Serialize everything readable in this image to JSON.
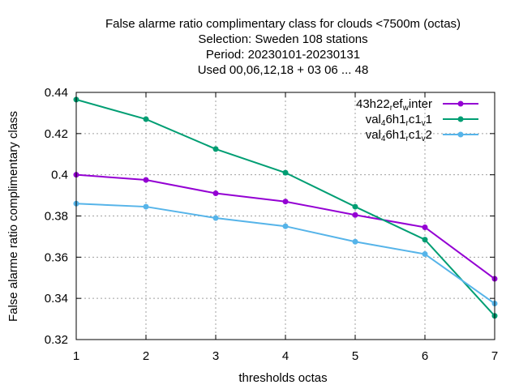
{
  "chart_data": {
    "type": "line",
    "title_lines": [
      "False alarme ratio complimentary class  for clouds <7500m (octas)",
      "Selection: Sweden    108 stations",
      "Period: 20230101-20230131",
      "Used  00,06,12,18  + 03 06 ... 48"
    ],
    "xlabel": "thresholds octas",
    "ylabel": "False alarme ratio complimentary class",
    "x": [
      1,
      2,
      3,
      4,
      5,
      6,
      7
    ],
    "xlim": [
      1,
      7
    ],
    "ylim": [
      0.32,
      0.44
    ],
    "xticks": [
      1,
      2,
      3,
      4,
      5,
      6,
      7
    ],
    "yticks": [
      0.32,
      0.34,
      0.36,
      0.38,
      0.4,
      0.42,
      0.44
    ],
    "ytick_labels": [
      "0.32",
      "0.34",
      "0.36",
      "0.38",
      "0.4",
      "0.42",
      "0.44"
    ],
    "grid": true,
    "legend_position": "top-right",
    "series": [
      {
        "legend_parts": [
          [
            "43h22",
            ""
          ],
          [
            "r",
            "sub"
          ],
          [
            "ef",
            ""
          ],
          [
            "w",
            "sub"
          ],
          [
            "inter",
            ""
          ]
        ],
        "color": "#9400d3",
        "values": [
          0.4,
          0.3975,
          0.391,
          0.387,
          0.3805,
          0.3745,
          0.3495
        ]
      },
      {
        "legend_parts": [
          [
            "val",
            ""
          ],
          [
            "4",
            "sub"
          ],
          [
            "6h1",
            ""
          ],
          [
            "r",
            "sub"
          ],
          [
            "c1",
            ""
          ],
          [
            "v",
            "sub"
          ],
          [
            "1",
            ""
          ]
        ],
        "color": "#009e73",
        "values": [
          0.4365,
          0.427,
          0.4125,
          0.401,
          0.3845,
          0.3685,
          0.3315
        ]
      },
      {
        "legend_parts": [
          [
            "val",
            ""
          ],
          [
            "4",
            "sub"
          ],
          [
            "6h1",
            ""
          ],
          [
            "r",
            "sub"
          ],
          [
            "c1",
            ""
          ],
          [
            "v",
            "sub"
          ],
          [
            "2",
            ""
          ]
        ],
        "color": "#56b4e9",
        "values": [
          0.386,
          0.3845,
          0.379,
          0.375,
          0.3675,
          0.3615,
          0.3375
        ]
      }
    ]
  }
}
